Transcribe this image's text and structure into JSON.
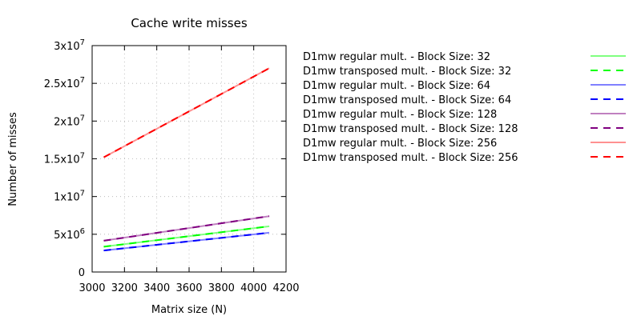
{
  "chart_data": {
    "type": "line",
    "title": "Cache write misses",
    "xlabel": "Matrix size (N)",
    "ylabel": "Number of misses",
    "xlim": [
      3000,
      4200
    ],
    "ylim": [
      0,
      30000000
    ],
    "x_ticks": [
      3000,
      3200,
      3400,
      3600,
      3800,
      4000,
      4200
    ],
    "x_tick_labels": [
      "3000",
      "3200",
      "3400",
      "3600",
      "3800",
      "4000",
      "4200"
    ],
    "y_ticks": [
      {
        "value": 0,
        "mantissa": "0",
        "exp": ""
      },
      {
        "value": 5000000,
        "mantissa": "5x10",
        "exp": "6"
      },
      {
        "value": 10000000,
        "mantissa": "1x10",
        "exp": "7"
      },
      {
        "value": 15000000,
        "mantissa": "1.5x10",
        "exp": "7"
      },
      {
        "value": 20000000,
        "mantissa": "2x10",
        "exp": "7"
      },
      {
        "value": 25000000,
        "mantissa": "2.5x10",
        "exp": "7"
      },
      {
        "value": 30000000,
        "mantissa": "3x10",
        "exp": "7"
      }
    ],
    "grid": true,
    "legend_position": "right",
    "x": [
      3072,
      4096
    ],
    "series": [
      {
        "name": "D1mw regular mult. - Block Size: 32",
        "color": "#80ff80",
        "dash": "solid",
        "values": [
          3350000,
          6050000
        ]
      },
      {
        "name": "D1mw transposed mult. - Block Size: 32",
        "color": "#00ff00",
        "dash": "dashed",
        "values": [
          3350000,
          6050000
        ]
      },
      {
        "name": "D1mw regular mult. - Block Size: 64",
        "color": "#8080ff",
        "dash": "solid",
        "values": [
          2850000,
          5200000
        ]
      },
      {
        "name": "D1mw transposed mult. - Block Size: 64",
        "color": "#0000ff",
        "dash": "dashed",
        "values": [
          2850000,
          5200000
        ]
      },
      {
        "name": "D1mw regular mult. - Block Size: 128",
        "color": "#c080c0",
        "dash": "solid",
        "values": [
          4150000,
          7400000
        ]
      },
      {
        "name": "D1mw transposed mult. - Block Size: 128",
        "color": "#800080",
        "dash": "dashed",
        "values": [
          4150000,
          7400000
        ]
      },
      {
        "name": "D1mw regular mult. - Block Size: 256",
        "color": "#ff9090",
        "dash": "solid",
        "values": [
          15200000,
          27000000
        ]
      },
      {
        "name": "D1mw transposed mult. - Block Size: 256",
        "color": "#ff0000",
        "dash": "dashed",
        "values": [
          15200000,
          27000000
        ]
      }
    ]
  }
}
